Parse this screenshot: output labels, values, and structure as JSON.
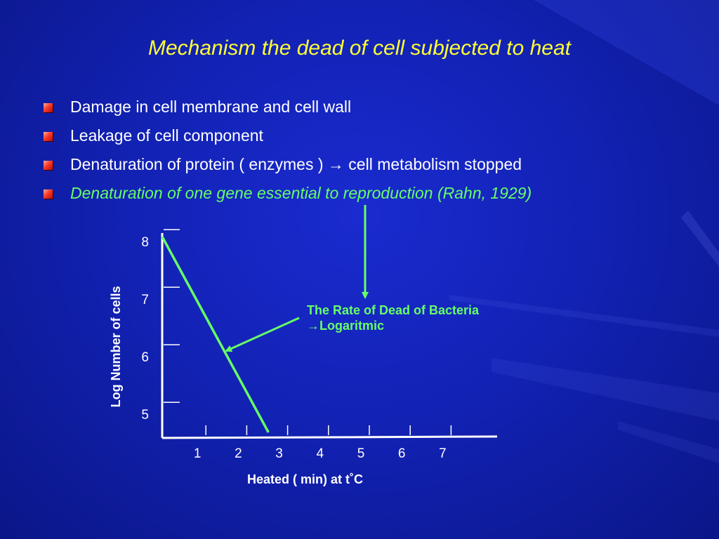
{
  "slide": {
    "title": "Mechanism the dead of cell subjected to heat",
    "bullets": [
      {
        "text": "Damage in cell membrane and cell wall",
        "style": "white"
      },
      {
        "text": "Leakage of cell component",
        "style": "white"
      },
      {
        "text": "Denaturation of protein ( enzymes ) → cell metabolism stopped",
        "style": "white"
      },
      {
        "text": "Denaturation  of one gene essential to reproduction (Rahn, 1929)",
        "style": "green"
      }
    ],
    "bullet_icon": "square-bullet-icon"
  },
  "colors": {
    "background": "#1222b4",
    "title": "#ffff33",
    "text": "#ffffff",
    "accent_green": "#66ff66",
    "bullet": "#ff3a2a"
  },
  "chart_data": {
    "type": "line",
    "xlabel": "Heated ( min) at  t˚C",
    "ylabel": "Log Number of cells",
    "x_ticks": [
      1,
      2,
      3,
      4,
      5,
      6,
      7
    ],
    "y_ticks": [
      5,
      6,
      7,
      8
    ],
    "xlim": [
      0,
      8
    ],
    "ylim": [
      4.6,
      8.2
    ],
    "grid": false,
    "series": [
      {
        "x": [
          0,
          2.6
        ],
        "y": [
          8.0,
          4.6
        ],
        "color": "#66ff66"
      }
    ],
    "annotation": {
      "line1": "The Rate of Dead of Bacteria",
      "line2": "→Logaritmic"
    }
  }
}
